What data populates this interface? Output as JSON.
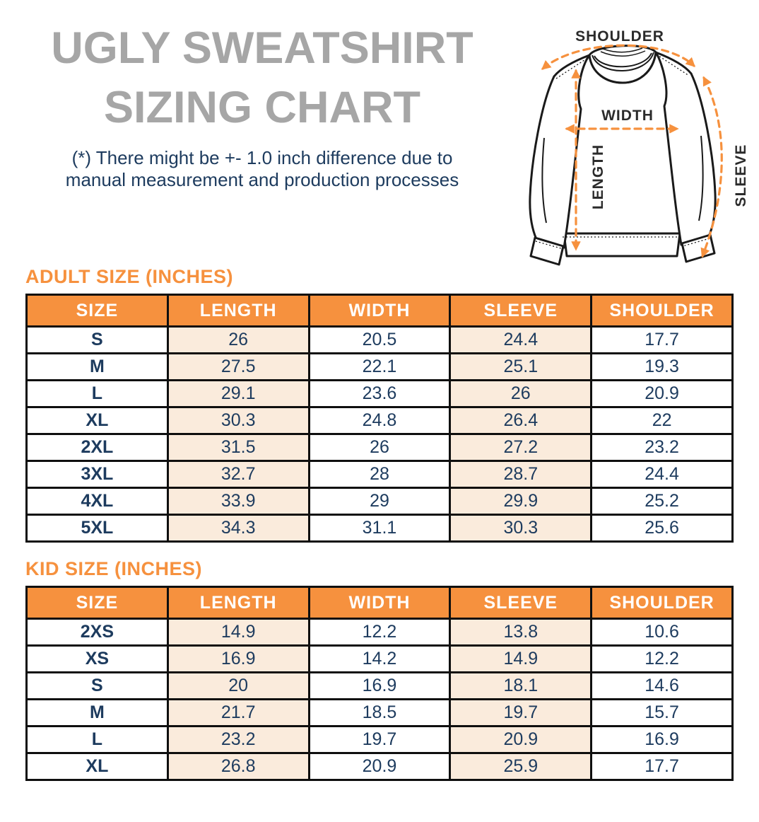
{
  "page": {
    "title_line1": "UGLY SWEATSHIRT",
    "title_line2": "SIZING CHART",
    "disclaimer_line1": "(*) There might be +- 1.0 inch difference due to",
    "disclaimer_line2": "manual measurement and production processes"
  },
  "diagram": {
    "labels": {
      "shoulder": "SHOULDER",
      "width": "WIDTH",
      "length": "LENGTH",
      "sleeve": "SLEEVE"
    }
  },
  "colors": {
    "accent_orange": "#f6913e",
    "peach_cell": "#faebdc",
    "navy_text": "#1d3b5e",
    "title_gray": "#a6a6a6",
    "table_border": "#0f0f0f",
    "header_text": "#ffffff"
  },
  "adult_table": {
    "heading": "ADULT SIZE (INCHES)",
    "columns": [
      "SIZE",
      "LENGTH",
      "WIDTH",
      "SLEEVE",
      "SHOULDER"
    ],
    "rows": [
      [
        "S",
        "26",
        "20.5",
        "24.4",
        "17.7"
      ],
      [
        "M",
        "27.5",
        "22.1",
        "25.1",
        "19.3"
      ],
      [
        "L",
        "29.1",
        "23.6",
        "26",
        "20.9"
      ],
      [
        "XL",
        "30.3",
        "24.8",
        "26.4",
        "22"
      ],
      [
        "2XL",
        "31.5",
        "26",
        "27.2",
        "23.2"
      ],
      [
        "3XL",
        "32.7",
        "28",
        "28.7",
        "24.4"
      ],
      [
        "4XL",
        "33.9",
        "29",
        "29.9",
        "25.2"
      ],
      [
        "5XL",
        "34.3",
        "31.1",
        "30.3",
        "25.6"
      ]
    ]
  },
  "kid_table": {
    "heading": "KID SIZE (INCHES)",
    "columns": [
      "SIZE",
      "LENGTH",
      "WIDTH",
      "SLEEVE",
      "SHOULDER"
    ],
    "rows": [
      [
        "2XS",
        "14.9",
        "12.2",
        "13.8",
        "10.6"
      ],
      [
        "XS",
        "16.9",
        "14.2",
        "14.9",
        "12.2"
      ],
      [
        "S",
        "20",
        "16.9",
        "18.1",
        "14.6"
      ],
      [
        "M",
        "21.7",
        "18.5",
        "19.7",
        "15.7"
      ],
      [
        "L",
        "23.2",
        "19.7",
        "20.9",
        "16.9"
      ],
      [
        "XL",
        "26.8",
        "20.9",
        "25.9",
        "17.7"
      ]
    ]
  }
}
